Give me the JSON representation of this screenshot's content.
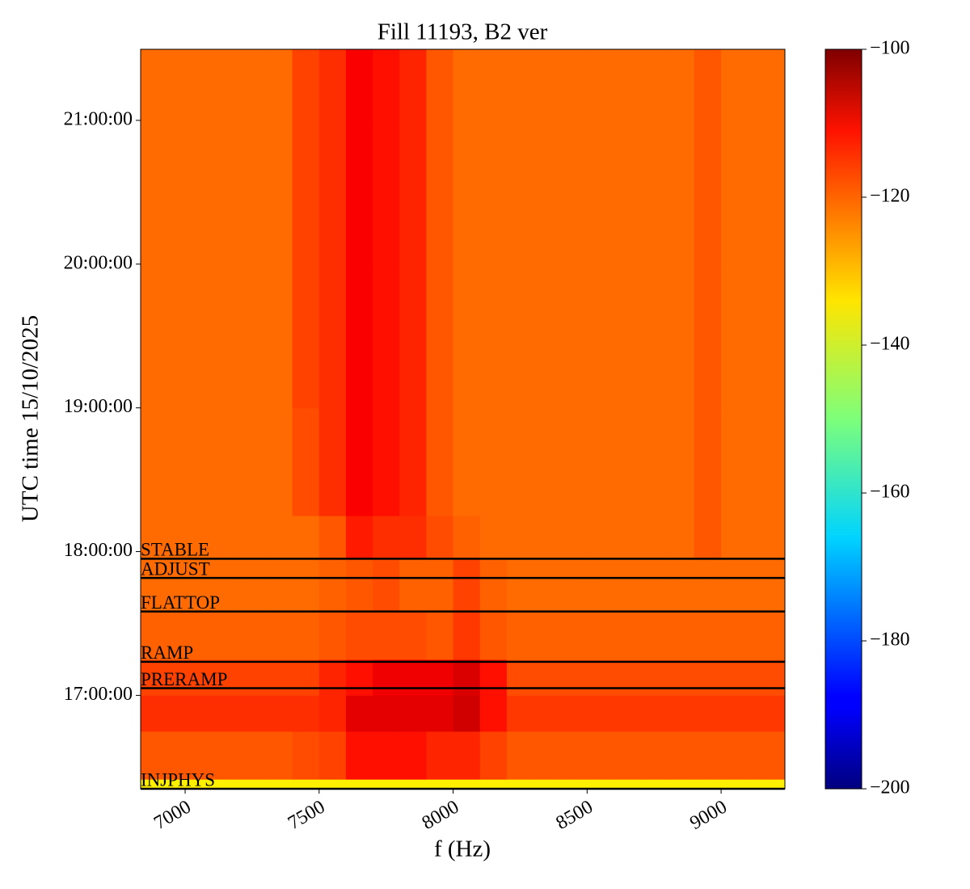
{
  "chart_data": {
    "type": "spectrogram",
    "title": "Fill 11193, B2 ver",
    "xlabel": "f (Hz)",
    "ylabel": "UTC time 15/10/2025",
    "xlim": [
      6834,
      9238
    ],
    "xticks": [
      7000,
      7500,
      8000,
      8500,
      9000
    ],
    "ylim": [
      "16:21:00",
      "21:29:40"
    ],
    "yticks": [
      "17:00:00",
      "18:00:00",
      "19:00:00",
      "20:00:00",
      "21:00:00"
    ],
    "colormap": "jet",
    "clim": [
      -200,
      -100
    ],
    "cticks": [
      {
        "value": -200,
        "label": "−200"
      },
      {
        "value": -180,
        "label": "−180"
      },
      {
        "value": -160,
        "label": "−160"
      },
      {
        "value": -140,
        "label": "−140"
      },
      {
        "value": -120,
        "label": "−120"
      },
      {
        "value": -100,
        "label": "−100"
      }
    ],
    "x_edges": [
      6834,
      7000,
      7100,
      7200,
      7300,
      7400,
      7500,
      7600,
      7700,
      7800,
      7900,
      8000,
      8100,
      8200,
      8300,
      8400,
      8500,
      8600,
      8700,
      8800,
      8900,
      9000,
      9100,
      9200,
      9238
    ],
    "y_edges": [
      "16:21:00",
      "16:25:00",
      "16:45:00",
      "17:00:00",
      "17:15:00",
      "17:35:00",
      "17:57:00",
      "18:15:00",
      "19:00:00",
      "20:00:00",
      "21:00:00",
      "21:29:40"
    ],
    "z": [
      [
        -136,
        -136,
        -136,
        -136,
        -136,
        -136,
        -136,
        -136,
        -136,
        -136,
        -136,
        -136,
        -136,
        -136,
        -136,
        -136,
        -136,
        -136,
        -136,
        -136,
        -136,
        -136,
        -136,
        -136
      ],
      [
        -121,
        -121,
        -121,
        -121,
        -121,
        -120,
        -119,
        -114,
        -114,
        -114,
        -116,
        -116,
        -119,
        -121,
        -121,
        -121,
        -121,
        -121,
        -121,
        -121,
        -121,
        -121,
        -121,
        -121
      ],
      [
        -117,
        -117,
        -117,
        -117,
        -117,
        -117,
        -116,
        -110,
        -110,
        -110,
        -110,
        -108,
        -114,
        -118,
        -118,
        -118,
        -118,
        -118,
        -118,
        -118,
        -118,
        -118,
        -118,
        -118
      ],
      [
        -119,
        -119,
        -119,
        -119,
        -119,
        -119,
        -116,
        -114,
        -111,
        -111,
        -111,
        -109,
        -114,
        -120,
        -120,
        -120,
        -120,
        -120,
        -120,
        -120,
        -120,
        -120,
        -120,
        -120
      ],
      [
        -122,
        -122,
        -122,
        -122,
        -122,
        -122,
        -121,
        -120,
        -120,
        -120,
        -121,
        -118,
        -121,
        -122,
        -122,
        -122,
        -122,
        -122,
        -122,
        -122,
        -122,
        -122,
        -122,
        -122
      ],
      [
        -123,
        -123,
        -123,
        -123,
        -123,
        -123,
        -122,
        -121,
        -120,
        -122,
        -122,
        -119,
        -122,
        -123,
        -123,
        -123,
        -123,
        -123,
        -123,
        -123,
        -123,
        -123,
        -123,
        -123
      ],
      [
        -123,
        -123,
        -123,
        -123,
        -123,
        -123,
        -121,
        -115,
        -117,
        -117,
        -120,
        -122,
        -123,
        -123,
        -123,
        -123,
        -123,
        -123,
        -123,
        -123,
        -121,
        -123,
        -123,
        -123
      ],
      [
        -123,
        -123,
        -123,
        -123,
        -123,
        -120,
        -117,
        -112,
        -114,
        -116,
        -121,
        -123,
        -123,
        -123,
        -123,
        -123,
        -123,
        -123,
        -123,
        -123,
        -121,
        -123,
        -123,
        -123
      ],
      [
        -123,
        -123,
        -123,
        -123,
        -123,
        -119,
        -117,
        -112,
        -114,
        -116,
        -121,
        -123,
        -123,
        -123,
        -123,
        -123,
        -123,
        -123,
        -123,
        -123,
        -121,
        -123,
        -123,
        -123
      ],
      [
        -123,
        -123,
        -123,
        -123,
        -123,
        -119,
        -117,
        -112,
        -114,
        -116,
        -121,
        -123,
        -123,
        -123,
        -123,
        -123,
        -123,
        -123,
        -123,
        -123,
        -121,
        -123,
        -123,
        -123
      ],
      [
        -123,
        -123,
        -123,
        -123,
        -123,
        -119,
        -117,
        -112,
        -114,
        -116,
        -121,
        -123,
        -123,
        -123,
        -123,
        -123,
        -123,
        -123,
        -123,
        -123,
        -121,
        -123,
        -123,
        -123
      ]
    ],
    "phases": [
      {
        "label": "INJPHYS",
        "time": "16:21:00"
      },
      {
        "label": "PRERAMP",
        "time": "17:03:00"
      },
      {
        "label": "RAMP",
        "time": "17:14:00"
      },
      {
        "label": "FLATTOP",
        "time": "17:35:00"
      },
      {
        "label": "ADJUST",
        "time": "17:49:00"
      },
      {
        "label": "STABLE",
        "time": "17:57:00"
      }
    ],
    "phase_line_color": "#000000"
  }
}
